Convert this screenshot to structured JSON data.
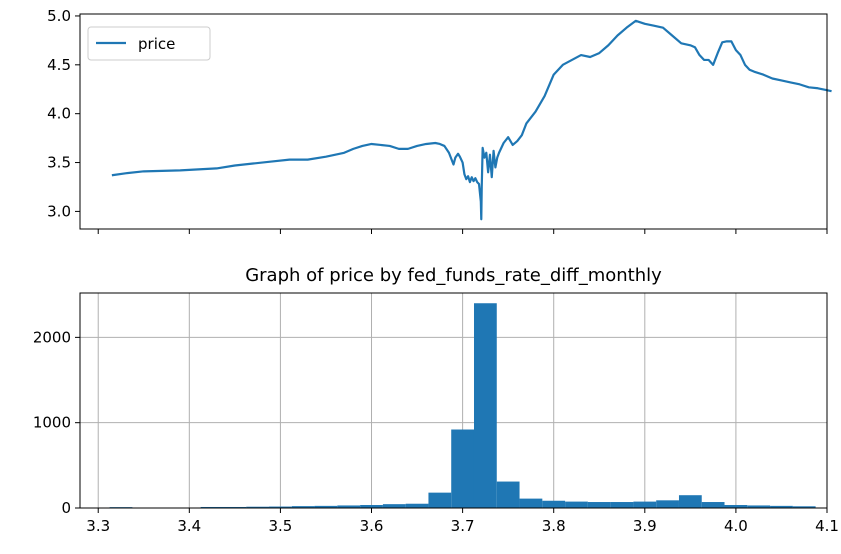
{
  "chart_data": [
    {
      "type": "line",
      "title": "",
      "xlabel": "",
      "ylabel": "",
      "legend": {
        "placement": "top-left",
        "entries": [
          "price"
        ]
      },
      "grid": false,
      "x_tick_labels_visible": false,
      "xlim": [
        3.28,
        4.1
      ],
      "ylim": [
        2.82,
        5.02
      ],
      "yticks": [
        3.0,
        3.5,
        4.0,
        4.5,
        5.0
      ],
      "ytick_labels": [
        "3.0",
        "3.5",
        "4.0",
        "4.5",
        "5.0"
      ],
      "series": [
        {
          "name": "price",
          "color": "#1f77b4",
          "points": [
            [
              3.315,
              3.37
            ],
            [
              3.33,
              3.39
            ],
            [
              3.35,
              3.41
            ],
            [
              3.37,
              3.415
            ],
            [
              3.39,
              3.42
            ],
            [
              3.41,
              3.43
            ],
            [
              3.43,
              3.44
            ],
            [
              3.45,
              3.47
            ],
            [
              3.47,
              3.49
            ],
            [
              3.49,
              3.51
            ],
            [
              3.51,
              3.53
            ],
            [
              3.53,
              3.53
            ],
            [
              3.55,
              3.56
            ],
            [
              3.57,
              3.6
            ],
            [
              3.58,
              3.64
            ],
            [
              3.59,
              3.67
            ],
            [
              3.6,
              3.69
            ],
            [
              3.61,
              3.68
            ],
            [
              3.62,
              3.67
            ],
            [
              3.63,
              3.64
            ],
            [
              3.64,
              3.64
            ],
            [
              3.65,
              3.67
            ],
            [
              3.66,
              3.69
            ],
            [
              3.67,
              3.7
            ],
            [
              3.675,
              3.69
            ],
            [
              3.68,
              3.67
            ],
            [
              3.685,
              3.6
            ],
            [
              3.69,
              3.48
            ],
            [
              3.692,
              3.55
            ],
            [
              3.695,
              3.59
            ],
            [
              3.697,
              3.56
            ],
            [
              3.7,
              3.5
            ],
            [
              3.702,
              3.38
            ],
            [
              3.704,
              3.33
            ],
            [
              3.706,
              3.36
            ],
            [
              3.708,
              3.3
            ],
            [
              3.71,
              3.35
            ],
            [
              3.712,
              3.31
            ],
            [
              3.714,
              3.34
            ],
            [
              3.716,
              3.3
            ],
            [
              3.718,
              3.28
            ],
            [
              3.72,
              3.1
            ],
            [
              3.7205,
              2.92
            ],
            [
              3.721,
              3.25
            ],
            [
              3.722,
              3.65
            ],
            [
              3.724,
              3.55
            ],
            [
              3.726,
              3.6
            ],
            [
              3.728,
              3.4
            ],
            [
              3.73,
              3.58
            ],
            [
              3.732,
              3.35
            ],
            [
              3.734,
              3.62
            ],
            [
              3.736,
              3.45
            ],
            [
              3.738,
              3.55
            ],
            [
              3.74,
              3.6
            ],
            [
              3.745,
              3.7
            ],
            [
              3.75,
              3.76
            ],
            [
              3.755,
              3.68
            ],
            [
              3.76,
              3.72
            ],
            [
              3.765,
              3.78
            ],
            [
              3.77,
              3.9
            ],
            [
              3.78,
              4.02
            ],
            [
              3.79,
              4.18
            ],
            [
              3.8,
              4.4
            ],
            [
              3.81,
              4.5
            ],
            [
              3.82,
              4.55
            ],
            [
              3.83,
              4.6
            ],
            [
              3.84,
              4.58
            ],
            [
              3.85,
              4.62
            ],
            [
              3.86,
              4.7
            ],
            [
              3.87,
              4.8
            ],
            [
              3.88,
              4.88
            ],
            [
              3.89,
              4.95
            ],
            [
              3.9,
              4.92
            ],
            [
              3.91,
              4.9
            ],
            [
              3.92,
              4.88
            ],
            [
              3.93,
              4.8
            ],
            [
              3.94,
              4.72
            ],
            [
              3.95,
              4.7
            ],
            [
              3.955,
              4.68
            ],
            [
              3.96,
              4.6
            ],
            [
              3.965,
              4.55
            ],
            [
              3.97,
              4.55
            ],
            [
              3.975,
              4.5
            ],
            [
              3.98,
              4.62
            ],
            [
              3.985,
              4.73
            ],
            [
              3.99,
              4.74
            ],
            [
              3.995,
              4.74
            ],
            [
              4.0,
              4.65
            ],
            [
              4.005,
              4.6
            ],
            [
              4.01,
              4.5
            ],
            [
              4.015,
              4.45
            ],
            [
              4.02,
              4.43
            ],
            [
              4.03,
              4.4
            ],
            [
              4.04,
              4.36
            ],
            [
              4.05,
              4.34
            ],
            [
              4.06,
              4.32
            ],
            [
              4.07,
              4.3
            ],
            [
              4.08,
              4.27
            ],
            [
              4.09,
              4.26
            ],
            [
              4.1,
              4.24
            ],
            [
              4.105,
              4.23
            ]
          ]
        }
      ]
    },
    {
      "type": "bar",
      "title": "Graph of price by fed_funds_rate_diff_monthly",
      "xlabel": "",
      "ylabel": "",
      "grid": true,
      "bar_color": "#1f77b4",
      "xlim": [
        3.28,
        4.1
      ],
      "ylim": [
        0,
        2520
      ],
      "xticks": [
        3.3,
        3.4,
        3.5,
        3.6,
        3.7,
        3.8,
        3.9,
        4.0,
        4.1
      ],
      "xtick_labels": [
        "3.3",
        "3.4",
        "3.5",
        "3.6",
        "3.7",
        "3.8",
        "3.9",
        "4.0",
        "4.1"
      ],
      "yticks": [
        0,
        1000,
        2000
      ],
      "ytick_labels": [
        "0",
        "1000",
        "2000"
      ],
      "bin_edges": [
        3.3125,
        3.3375,
        3.3625,
        3.3875,
        3.4125,
        3.4375,
        3.4625,
        3.4875,
        3.5125,
        3.5375,
        3.5625,
        3.5875,
        3.6125,
        3.6375,
        3.6625,
        3.6875,
        3.7125,
        3.7375,
        3.7625,
        3.7875,
        3.8125,
        3.8375,
        3.8625,
        3.8875,
        3.9125,
        3.9375,
        3.9625,
        3.9875,
        4.0125,
        4.0375,
        4.0625,
        4.0875
      ],
      "values": [
        10,
        2,
        2,
        2,
        12,
        12,
        15,
        17,
        22,
        25,
        30,
        35,
        45,
        50,
        180,
        920,
        2400,
        310,
        110,
        85,
        75,
        70,
        70,
        75,
        90,
        150,
        70,
        35,
        30,
        25,
        20
      ]
    }
  ]
}
